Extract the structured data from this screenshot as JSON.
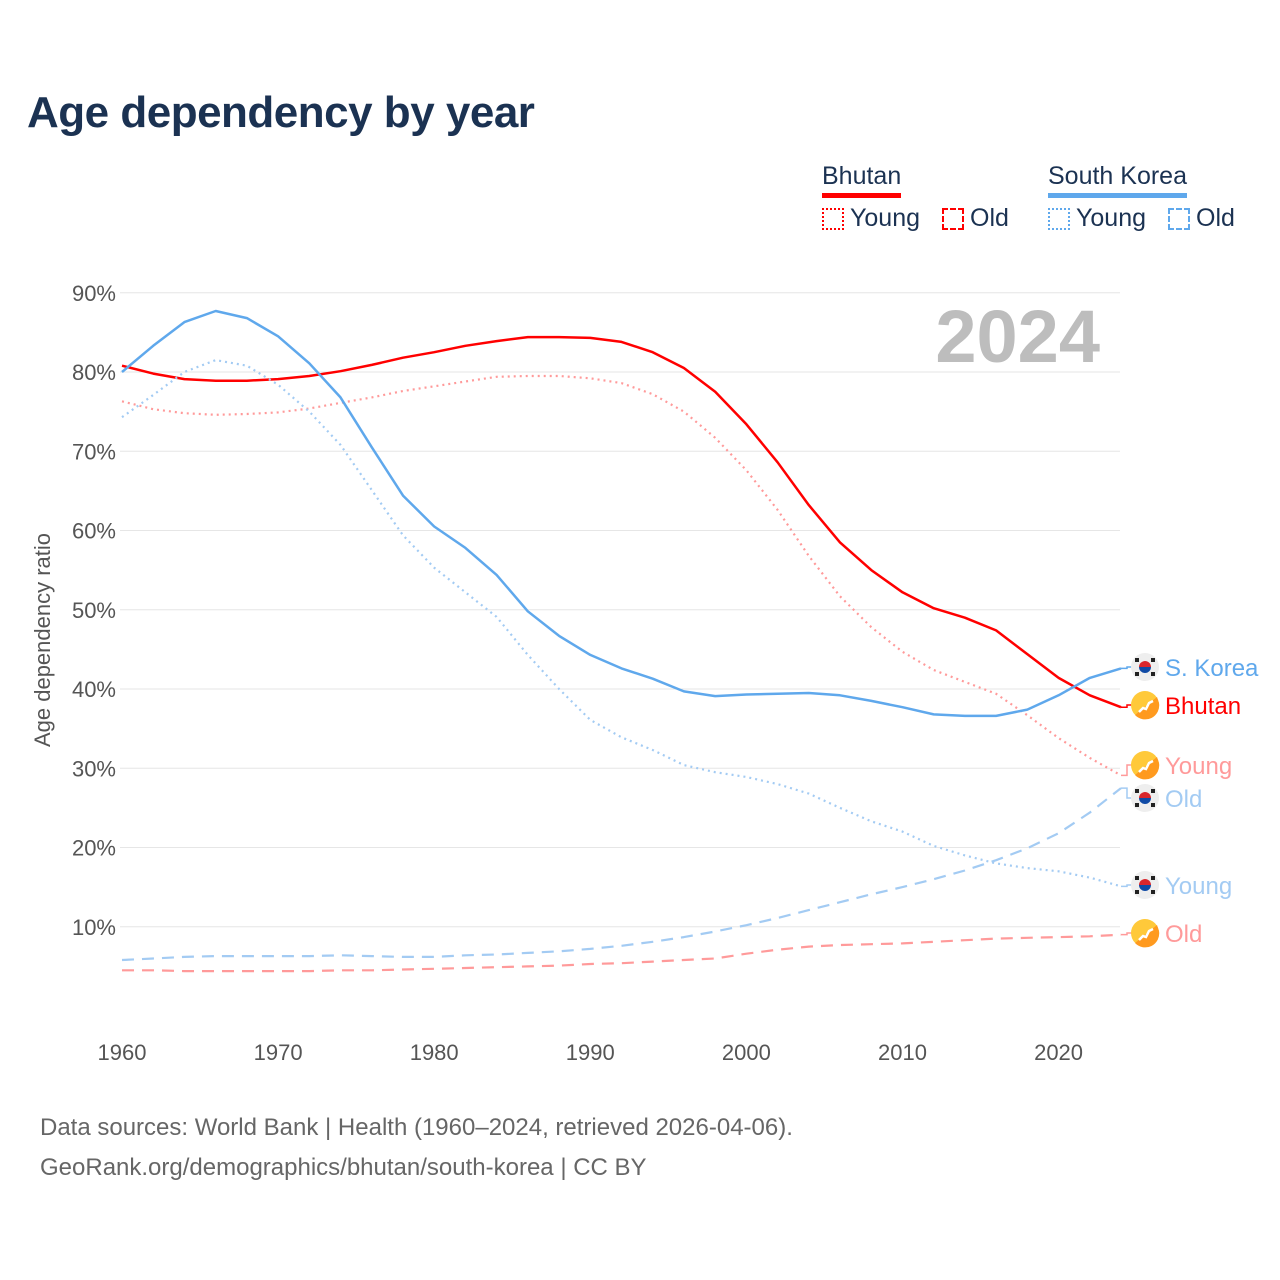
{
  "title": "Age dependency by year",
  "legend": {
    "groups": [
      {
        "name": "Bhutan",
        "color": "#ff0000",
        "items": [
          "Young",
          "Old"
        ]
      },
      {
        "name": "South Korea",
        "color": "#5fa8ec",
        "items": [
          "Young",
          "Old"
        ]
      }
    ]
  },
  "footer": {
    "line1": "Data sources: World Bank | Health (1960–2024, retrieved 2026-04-06).",
    "line2": "GeoRank.org/demographics/bhutan/south-korea | CC BY"
  },
  "chart_data": {
    "type": "line",
    "title": "Age dependency by year",
    "year_label": "2024",
    "ylabel": "Age dependency ratio",
    "xlabel": "",
    "xlim": [
      1960,
      2024
    ],
    "ylim": [
      0,
      90
    ],
    "grid": true,
    "x_ticks": [
      "1960",
      "1970",
      "1980",
      "1990",
      "2000",
      "2010",
      "2020"
    ],
    "y_ticks": [
      "10%",
      "20%",
      "30%",
      "40%",
      "50%",
      "60%",
      "70%",
      "80%",
      "90%"
    ],
    "x": [
      1960,
      1962,
      1964,
      1966,
      1968,
      1970,
      1972,
      1974,
      1976,
      1978,
      1980,
      1982,
      1984,
      1986,
      1988,
      1990,
      1992,
      1994,
      1996,
      1998,
      2000,
      2002,
      2004,
      2006,
      2008,
      2010,
      2012,
      2014,
      2016,
      2018,
      2020,
      2022,
      2024
    ],
    "series": [
      {
        "name": "Bhutan",
        "end_label": "Bhutan",
        "flag": "bhutan-flag",
        "color": "#ff0000",
        "style": "solid",
        "values": [
          80.8,
          79.8,
          79.1,
          78.9,
          78.9,
          79.1,
          79.5,
          80.1,
          80.9,
          81.8,
          82.5,
          83.3,
          83.9,
          84.4,
          84.4,
          84.3,
          83.8,
          82.5,
          80.5,
          77.5,
          73.4,
          68.6,
          63.2,
          58.5,
          55.0,
          52.2,
          50.2,
          49.0,
          47.4,
          44.4,
          41.4,
          39.2,
          37.7
        ]
      },
      {
        "name": "Bhutan Young",
        "end_label": "Young",
        "flag": "bhutan-flag",
        "color": "#ff9a9a",
        "style": "dotted",
        "values": [
          76.3,
          75.3,
          74.8,
          74.6,
          74.7,
          74.9,
          75.4,
          76.1,
          76.8,
          77.6,
          78.2,
          78.8,
          79.4,
          79.5,
          79.5,
          79.2,
          78.6,
          77.2,
          75.0,
          71.7,
          67.6,
          62.6,
          56.8,
          51.7,
          47.8,
          44.7,
          42.4,
          40.9,
          39.4,
          36.7,
          33.8,
          31.3,
          29.1
        ]
      },
      {
        "name": "Bhutan Old",
        "end_label": "Old",
        "flag": "bhutan-flag",
        "color": "#ff9a9a",
        "style": "dashed",
        "values": [
          4.5,
          4.5,
          4.4,
          4.4,
          4.4,
          4.4,
          4.4,
          4.5,
          4.5,
          4.6,
          4.7,
          4.8,
          4.9,
          5.0,
          5.1,
          5.3,
          5.4,
          5.6,
          5.8,
          6.0,
          6.6,
          7.1,
          7.5,
          7.7,
          7.8,
          7.9,
          8.1,
          8.3,
          8.5,
          8.6,
          8.7,
          8.8,
          9.0
        ]
      },
      {
        "name": "South Korea",
        "end_label": "S. Korea",
        "flag": "korea-flag",
        "color": "#5fa8ec",
        "style": "solid",
        "values": [
          80.0,
          83.3,
          86.3,
          87.7,
          86.8,
          84.5,
          81.1,
          76.8,
          70.5,
          64.4,
          60.5,
          57.8,
          54.4,
          49.8,
          46.7,
          44.3,
          42.6,
          41.3,
          39.7,
          39.1,
          39.3,
          39.4,
          39.5,
          39.2,
          38.5,
          37.7,
          36.8,
          36.6,
          36.6,
          37.4,
          39.2,
          41.4,
          42.6
        ]
      },
      {
        "name": "South Korea Young",
        "end_label": "Young",
        "flag": "korea-flag",
        "color": "#a3cbf3",
        "style": "dotted",
        "values": [
          74.3,
          77.1,
          80.0,
          81.5,
          80.8,
          78.4,
          75.0,
          70.8,
          65.1,
          59.4,
          55.3,
          52.2,
          49.1,
          44.3,
          40.0,
          36.1,
          33.9,
          32.3,
          30.4,
          29.5,
          28.9,
          28.0,
          26.8,
          25.0,
          23.3,
          22.0,
          20.2,
          19.0,
          18.0,
          17.4,
          17.0,
          16.2,
          15.1
        ]
      },
      {
        "name": "South Korea Old",
        "end_label": "Old",
        "flag": "korea-flag",
        "color": "#a3cbf3",
        "style": "dashed",
        "values": [
          5.8,
          6.0,
          6.2,
          6.3,
          6.3,
          6.3,
          6.3,
          6.4,
          6.3,
          6.2,
          6.2,
          6.4,
          6.5,
          6.7,
          6.9,
          7.2,
          7.6,
          8.1,
          8.7,
          9.4,
          10.2,
          11.1,
          12.1,
          13.1,
          14.1,
          15.0,
          16.0,
          17.1,
          18.4,
          19.9,
          21.8,
          24.4,
          27.5
        ]
      }
    ]
  }
}
